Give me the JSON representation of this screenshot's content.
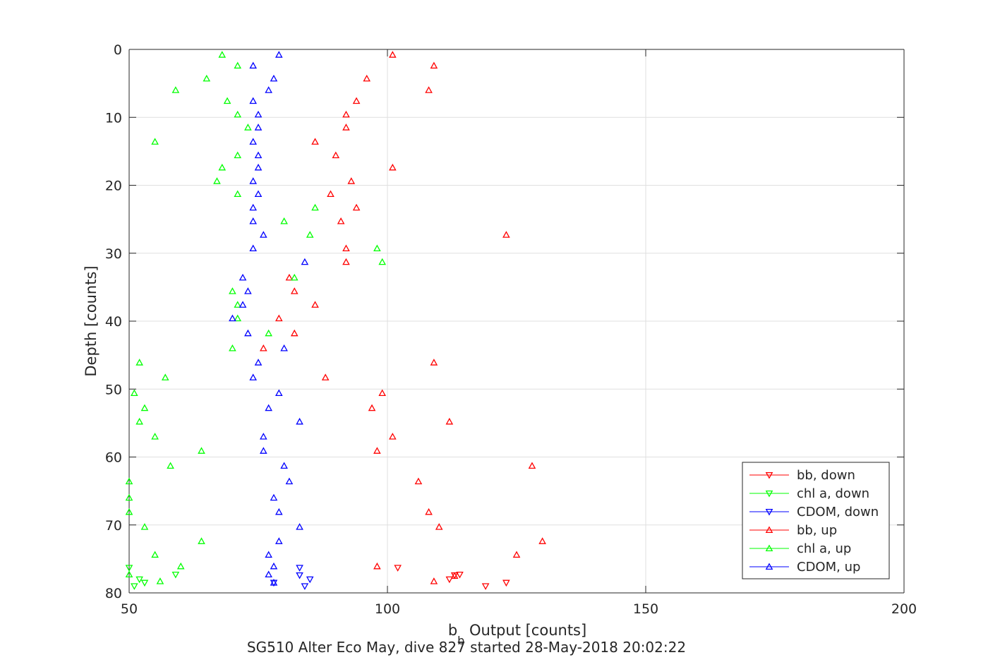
{
  "chart_data": {
    "type": "scatter",
    "title": "",
    "xlabel": {
      "main": "b",
      "sub": "b",
      "rest": " Output [counts]"
    },
    "ylabel": "Depth [counts]",
    "caption": "SG510 Alter Eco May, dive 827 started 28-May-2018 20:02:22",
    "xlim": [
      50,
      200
    ],
    "ylim": [
      0,
      80
    ],
    "y_reversed": true,
    "grid": true,
    "legend_position": "bottom-right",
    "x_ticks": [
      50,
      100,
      150,
      200
    ],
    "y_ticks": [
      0,
      10,
      20,
      30,
      40,
      50,
      60,
      70,
      80
    ],
    "series": [
      {
        "name": "bb, down",
        "color": "#ff0000",
        "marker": "triangle-down",
        "points": [
          [
            102,
            76.3
          ],
          [
            113,
            77.4
          ],
          [
            112,
            78.0
          ],
          [
            114,
            77.3
          ],
          [
            119,
            79.0
          ],
          [
            123,
            78.5
          ]
        ]
      },
      {
        "name": "chl a, down",
        "color": "#00ff00",
        "marker": "triangle-down",
        "points": [
          [
            50,
            76.3
          ],
          [
            52,
            78.0
          ],
          [
            53,
            78.5
          ],
          [
            51,
            79.0
          ],
          [
            59,
            77.3
          ]
        ]
      },
      {
        "name": "CDOM, down",
        "color": "#0000ff",
        "marker": "triangle-down",
        "points": [
          [
            83,
            76.3
          ],
          [
            83,
            77.4
          ],
          [
            85,
            78.0
          ],
          [
            78,
            78.5
          ],
          [
            84,
            79.0
          ]
        ]
      },
      {
        "name": "bb, up",
        "color": "#ff0000",
        "marker": "triangle-up",
        "points": [
          [
            101,
            0.8
          ],
          [
            109,
            2.4
          ],
          [
            96,
            4.3
          ],
          [
            108,
            6.0
          ],
          [
            94,
            7.6
          ],
          [
            92,
            9.6
          ],
          [
            92,
            11.5
          ],
          [
            86,
            13.6
          ],
          [
            90,
            15.6
          ],
          [
            101,
            17.4
          ],
          [
            93,
            19.4
          ],
          [
            89,
            21.3
          ],
          [
            94,
            23.3
          ],
          [
            91,
            25.3
          ],
          [
            123,
            27.3
          ],
          [
            92,
            29.3
          ],
          [
            92,
            31.3
          ],
          [
            81,
            33.6
          ],
          [
            82,
            35.6
          ],
          [
            86,
            37.6
          ],
          [
            79,
            39.6
          ],
          [
            82,
            41.8
          ],
          [
            76,
            44.0
          ],
          [
            109,
            46.1
          ],
          [
            88,
            48.3
          ],
          [
            99,
            50.6
          ],
          [
            97,
            52.8
          ],
          [
            112,
            54.8
          ],
          [
            101,
            57.0
          ],
          [
            98,
            59.1
          ],
          [
            128,
            61.3
          ],
          [
            106,
            63.6
          ],
          [
            108,
            68.1
          ],
          [
            110,
            70.3
          ],
          [
            130,
            72.4
          ],
          [
            125,
            74.4
          ],
          [
            98,
            76.1
          ],
          [
            109,
            78.3
          ],
          [
            113,
            77.5
          ]
        ]
      },
      {
        "name": "chl a, up",
        "color": "#00ff00",
        "marker": "triangle-up",
        "points": [
          [
            68,
            0.8
          ],
          [
            71,
            2.4
          ],
          [
            65,
            4.3
          ],
          [
            59,
            6.0
          ],
          [
            69,
            7.6
          ],
          [
            71,
            9.6
          ],
          [
            73,
            11.5
          ],
          [
            55,
            13.6
          ],
          [
            71,
            15.6
          ],
          [
            68,
            17.4
          ],
          [
            67,
            19.4
          ],
          [
            71,
            21.3
          ],
          [
            86,
            23.3
          ],
          [
            80,
            25.3
          ],
          [
            85,
            27.3
          ],
          [
            98,
            29.3
          ],
          [
            99,
            31.3
          ],
          [
            82,
            33.6
          ],
          [
            70,
            35.6
          ],
          [
            71,
            37.6
          ],
          [
            71,
            39.6
          ],
          [
            77,
            41.8
          ],
          [
            70,
            44.0
          ],
          [
            52,
            46.1
          ],
          [
            57,
            48.3
          ],
          [
            51,
            50.6
          ],
          [
            53,
            52.8
          ],
          [
            52,
            54.8
          ],
          [
            55,
            57.0
          ],
          [
            64,
            59.1
          ],
          [
            58,
            61.3
          ],
          [
            50,
            63.6
          ],
          [
            50,
            66.0
          ],
          [
            50,
            68.1
          ],
          [
            53,
            70.3
          ],
          [
            64,
            72.4
          ],
          [
            55,
            74.4
          ],
          [
            60,
            76.1
          ],
          [
            50,
            77.3
          ],
          [
            56,
            78.3
          ]
        ]
      },
      {
        "name": "CDOM, up",
        "color": "#0000ff",
        "marker": "triangle-up",
        "points": [
          [
            79,
            0.8
          ],
          [
            74,
            2.4
          ],
          [
            78,
            4.3
          ],
          [
            77,
            6.0
          ],
          [
            74,
            7.6
          ],
          [
            75,
            9.6
          ],
          [
            75,
            11.5
          ],
          [
            74,
            13.6
          ],
          [
            75,
            15.6
          ],
          [
            75,
            17.4
          ],
          [
            74,
            19.4
          ],
          [
            75,
            21.3
          ],
          [
            74,
            23.3
          ],
          [
            74,
            25.3
          ],
          [
            76,
            27.3
          ],
          [
            74,
            29.3
          ],
          [
            84,
            31.3
          ],
          [
            72,
            33.6
          ],
          [
            73,
            35.6
          ],
          [
            72,
            37.6
          ],
          [
            70,
            39.6
          ],
          [
            73,
            41.8
          ],
          [
            80,
            44.0
          ],
          [
            75,
            46.1
          ],
          [
            74,
            48.3
          ],
          [
            79,
            50.6
          ],
          [
            77,
            52.8
          ],
          [
            83,
            54.8
          ],
          [
            76,
            57.0
          ],
          [
            76,
            59.1
          ],
          [
            80,
            61.3
          ],
          [
            81,
            63.6
          ],
          [
            78,
            66.0
          ],
          [
            79,
            68.1
          ],
          [
            83,
            70.3
          ],
          [
            79,
            72.4
          ],
          [
            77,
            74.4
          ],
          [
            78,
            76.1
          ],
          [
            77,
            77.3
          ],
          [
            78,
            78.5
          ]
        ]
      }
    ]
  }
}
